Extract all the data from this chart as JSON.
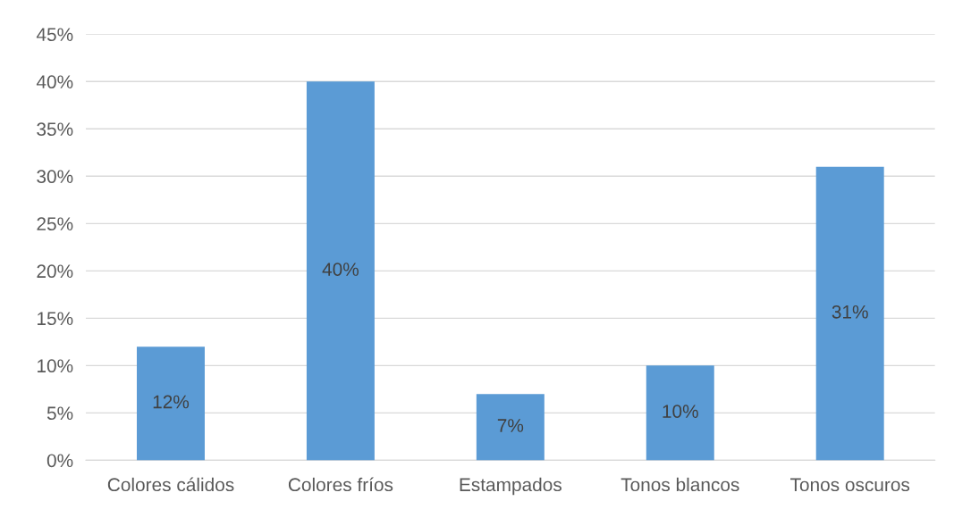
{
  "chart_data": {
    "type": "bar",
    "categories": [
      "Colores cálidos",
      "Colores fríos",
      "Estampados",
      "Tonos blancos",
      "Tonos oscuros"
    ],
    "values": [
      12,
      40,
      7,
      10,
      31
    ],
    "value_labels": [
      "12%",
      "40%",
      "7%",
      "10%",
      "31%"
    ],
    "color": "#5b9bd5",
    "ylim": [
      0,
      45
    ],
    "yticks": [
      {
        "value": 0,
        "label": "0%"
      },
      {
        "value": 5,
        "label": "5%"
      },
      {
        "value": 10,
        "label": "10%"
      },
      {
        "value": 15,
        "label": "15%"
      },
      {
        "value": 20,
        "label": "20%"
      },
      {
        "value": 25,
        "label": "25%"
      },
      {
        "value": 30,
        "label": "30%"
      },
      {
        "value": 35,
        "label": "35%"
      },
      {
        "value": 40,
        "label": "40%"
      },
      {
        "value": 45,
        "label": "45%"
      }
    ],
    "grid": "y"
  }
}
